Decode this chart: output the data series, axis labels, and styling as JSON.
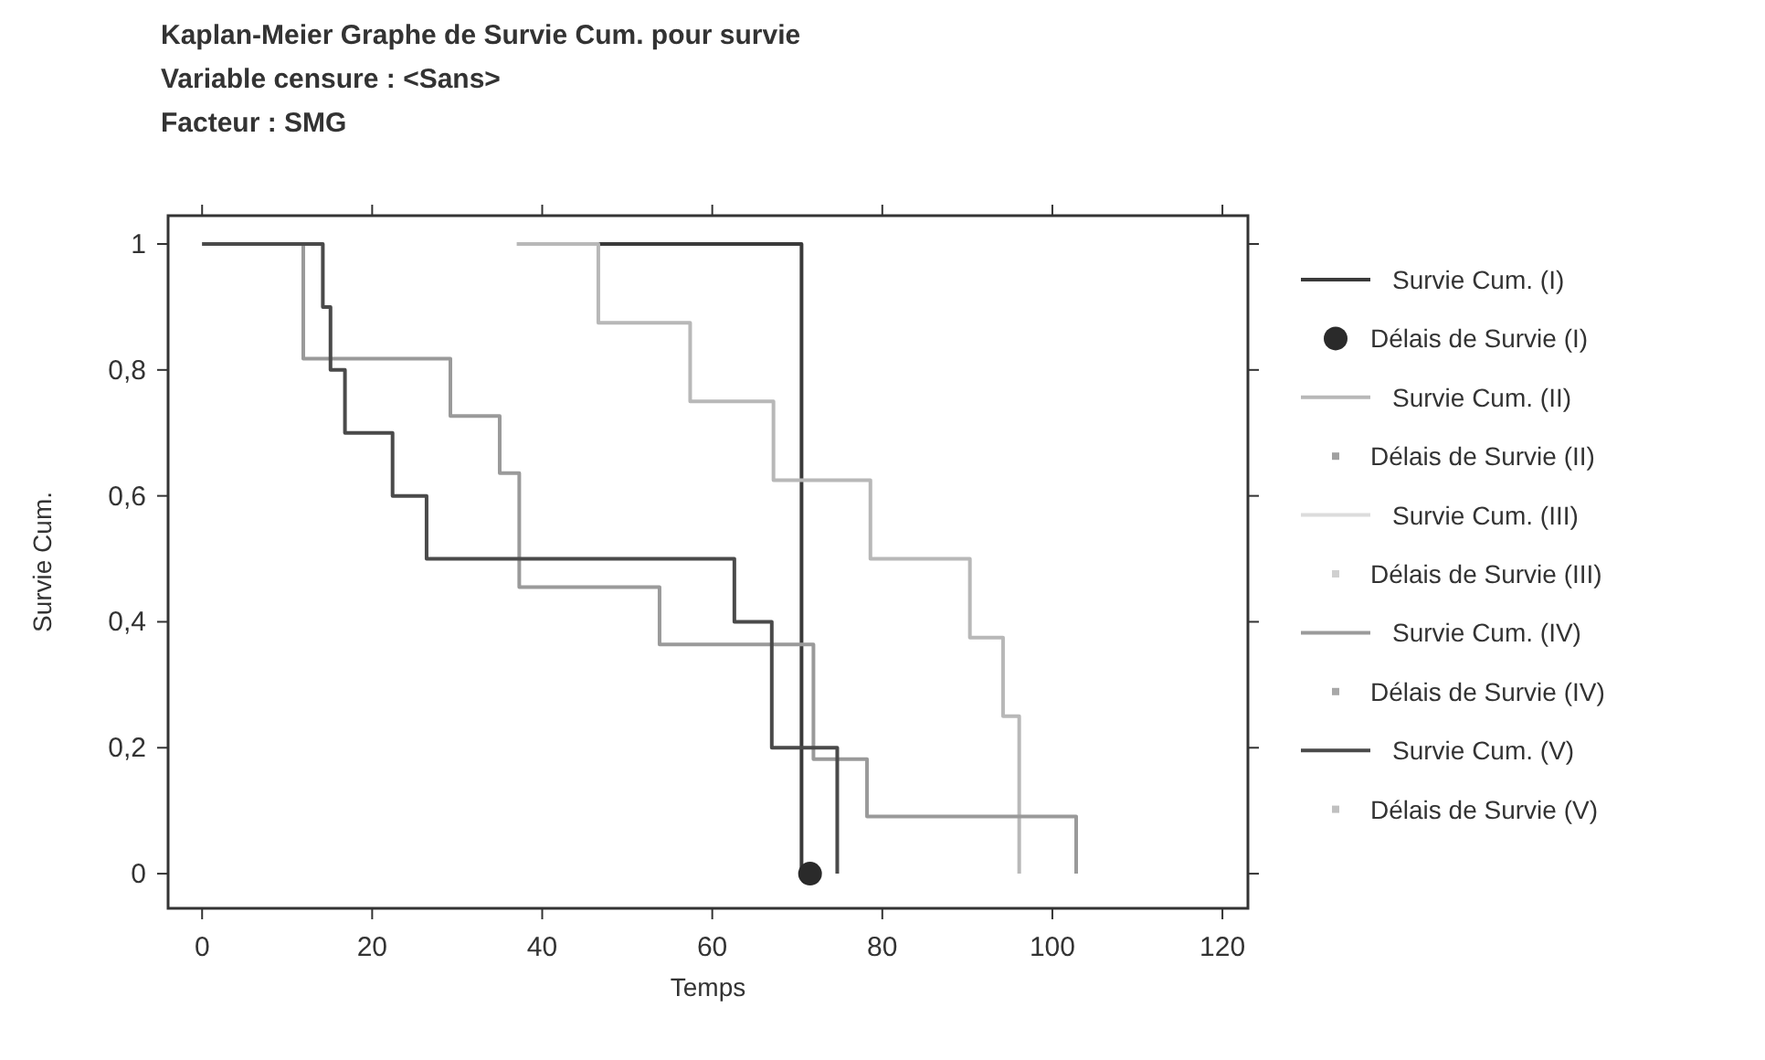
{
  "chart_data": {
    "type": "step",
    "title": "Kaplan-Meier Graphe de Survie Cum. pour survie",
    "subtitle": "Variable censure : <Sans>\nFacteur : SMG",
    "xlabel": "Temps",
    "ylabel": "Survie Cum.",
    "xlim": [
      -4,
      123
    ],
    "ylim": [
      -0.055,
      1.045
    ],
    "xticks": [
      0,
      20,
      40,
      60,
      80,
      100,
      120
    ],
    "yticks": [
      {
        "value": 0,
        "label": "0"
      },
      {
        "value": 0.2,
        "label": "0,2"
      },
      {
        "value": 0.4,
        "label": "0,4"
      },
      {
        "value": 0.6,
        "label": "0,6"
      },
      {
        "value": 0.8,
        "label": "0,8"
      },
      {
        "value": 1,
        "label": "1"
      }
    ],
    "legend": "right",
    "grid": false,
    "series": [
      {
        "name": "Survie Cum. (I)",
        "color": "#3a3a3a",
        "x": [
          46.5,
          70.5
        ],
        "values": [
          1,
          0
        ]
      },
      {
        "name": "Délais de Survie (I)",
        "type": "scatter",
        "marker": "circle",
        "color": "#2a2a2a",
        "x": [
          71.5
        ],
        "values": [
          0
        ]
      },
      {
        "name": "Survie Cum. (II)",
        "color": "#b8b8b8",
        "x": [
          37,
          46.6,
          57.4,
          67.2,
          78.6,
          90.3,
          94.2,
          96.1
        ],
        "values": [
          1,
          0.875,
          0.75,
          0.625,
          0.5,
          0.375,
          0.25,
          0
        ]
      },
      {
        "name": "Délais de Survie (II)",
        "type": "scatter",
        "marker": "square",
        "color": "#a0a0a0"
      },
      {
        "name": "Survie Cum. (III)",
        "color": "#dcdcdc"
      },
      {
        "name": "Délais de Survie (III)",
        "type": "scatter",
        "marker": "square",
        "color": "#d0d0d0"
      },
      {
        "name": "Survie Cum. (IV)",
        "color": "#9a9a9a",
        "x": [
          0,
          11.9,
          29.2,
          35,
          37.3,
          53.8,
          71.9,
          78.2,
          102.8
        ],
        "values": [
          1,
          0.818,
          0.727,
          0.636,
          0.455,
          0.364,
          0.182,
          0.091,
          0
        ]
      },
      {
        "name": "Délais de Survie (IV)",
        "type": "scatter",
        "marker": "square",
        "color": "#a8a8a8"
      },
      {
        "name": "Survie Cum. (V)",
        "color": "#4a4a4a",
        "x": [
          0,
          14.2,
          15.1,
          16.8,
          22.4,
          26.4,
          62.6,
          67,
          74.7
        ],
        "values": [
          1,
          0.9,
          0.8,
          0.7,
          0.6,
          0.5,
          0.4,
          0.2,
          0
        ]
      },
      {
        "name": "Délais de Survie (V)",
        "type": "scatter",
        "marker": "square",
        "color": "#c0c0c0"
      }
    ]
  }
}
